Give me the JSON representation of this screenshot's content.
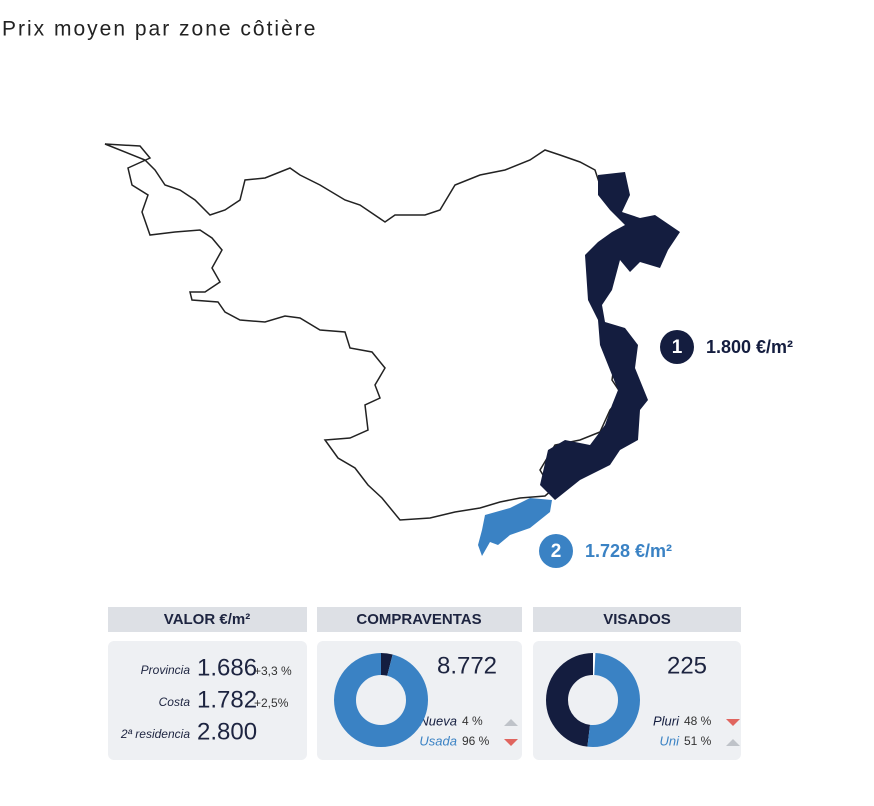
{
  "title": "Prix moyen par zone côtière",
  "map": {
    "zones": [
      {
        "number": "1",
        "price": "1.800 €/m²",
        "color": "#141d3f"
      },
      {
        "number": "2",
        "price": "1.728 €/m²",
        "color": "#3a82c4"
      }
    ]
  },
  "panels": {
    "valor": {
      "header": "VALOR €/m²",
      "rows": [
        {
          "label": "Provincia",
          "value": "1.686",
          "change": "+3,3 %"
        },
        {
          "label": "Costa",
          "value": "1.782",
          "change": "+2,5%"
        },
        {
          "label": "2ª residencia",
          "value": "2.800"
        }
      ]
    },
    "compraventas": {
      "header": "COMPRAVENTAS",
      "total": "8.772",
      "direction": "clockwise",
      "segments": [
        {
          "name": "Nueva",
          "value": 4,
          "label": "4 %",
          "trend": "up",
          "color": "#141d3f"
        },
        {
          "name": "Usada",
          "value": 96,
          "label": "96 %",
          "trend": "down",
          "color": "#3a82c4"
        }
      ]
    },
    "visados": {
      "header": "VISADOS",
      "total": "225",
      "direction": "counterclockwise",
      "segments": [
        {
          "name": "Pluri",
          "value": 48,
          "label": "48 %",
          "trend": "down",
          "color": "#141d3f"
        },
        {
          "name": "Uni",
          "value": 51,
          "label": "51 %",
          "trend": "up",
          "color": "#3a82c4"
        }
      ]
    }
  }
}
